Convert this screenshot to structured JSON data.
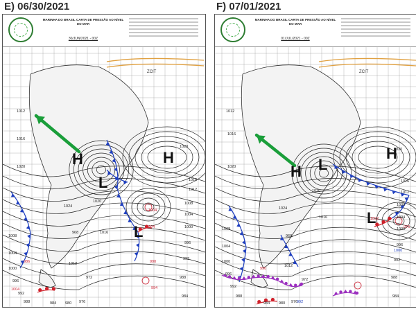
{
  "panels": [
    {
      "label": "E) 06/30/2021",
      "header_title": "MARINHA DO BRASIL CARTA DE PRESSÃO AO NÍVEL DO MAR",
      "header_date": "30/JUN/2021 - 00Z",
      "centers": [
        "H",
        "L",
        "H",
        "L"
      ],
      "region_label": "ZCIT",
      "isobar_labels": [
        "1012",
        "1016",
        "1020",
        "1024",
        "1020",
        "1016",
        "1012",
        "1008",
        "1004",
        "1000",
        "996",
        "992",
        "988",
        "984",
        "980",
        "976",
        "972",
        "968",
        "1020",
        "1016",
        "1012",
        "1008",
        "1004",
        "1000",
        "996",
        "992",
        "988",
        "984"
      ],
      "front_labels": [
        "986",
        "1004",
        "994",
        "1004",
        "990",
        "994"
      ]
    },
    {
      "label": "F)  07/01/2021",
      "header_title": "MARINHA DO BRASIL CARTA DE PRESSÃO AO NÍVEL DO MAR",
      "header_date": "01/JUL/2021 - 00Z",
      "centers": [
        "H",
        "L",
        "H",
        "L"
      ],
      "region_label": "ZCIT",
      "isobar_labels": [
        "1012",
        "1016",
        "1020",
        "1024",
        "1020",
        "1016",
        "1012",
        "1008",
        "1004",
        "1000",
        "996",
        "992",
        "988",
        "984",
        "980",
        "976",
        "972",
        "968",
        "1020",
        "1016",
        "1012",
        "1008",
        "1004",
        "1000",
        "996",
        "992",
        "988",
        "984"
      ],
      "front_labels": [
        "990",
        "1002",
        "976",
        "1000",
        "992"
      ]
    }
  ],
  "colors": {
    "arrow": "#1a9e3a",
    "cold_front": "#1f3fbf",
    "warm_front": "#d0202a",
    "occluded_front": "#9b2fbf",
    "isobar": "#222222",
    "land": "#f3f3f3",
    "itcz": "#e0a040"
  }
}
